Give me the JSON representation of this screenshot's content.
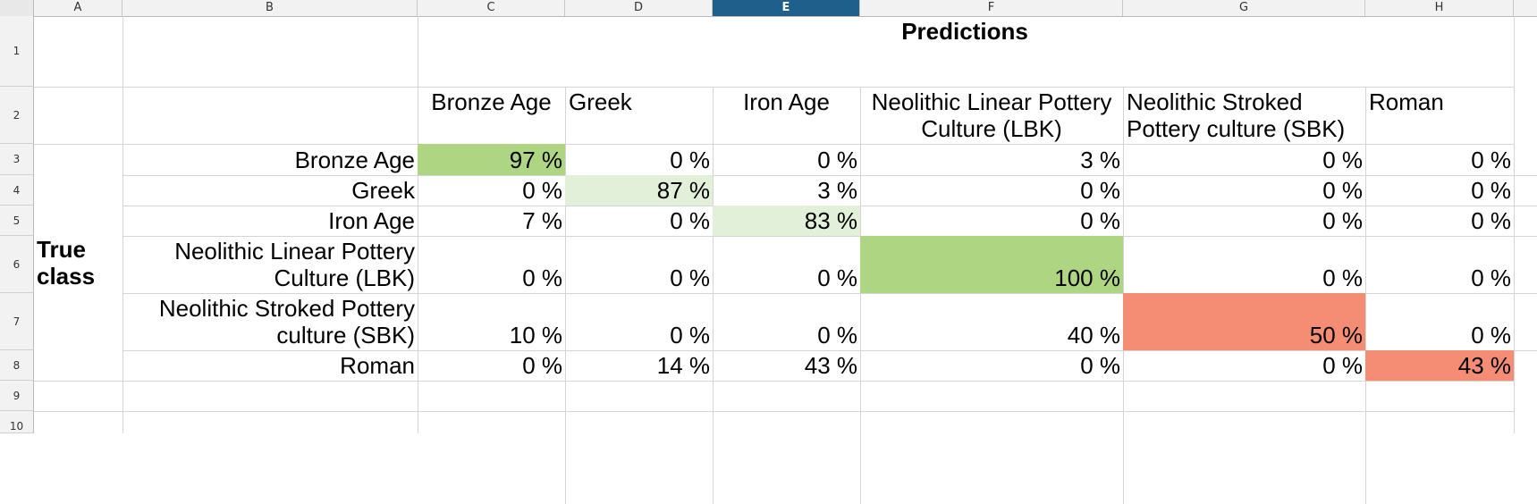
{
  "column_headers": [
    "A",
    "B",
    "C",
    "D",
    "E",
    "F",
    "G",
    "H"
  ],
  "active_column": "E",
  "row_headers": [
    "1",
    "2",
    "3",
    "4",
    "5",
    "6",
    "7",
    "8",
    "9",
    "10"
  ],
  "title": "Predictions",
  "true_class_label": "True\nclass",
  "prediction_headers": {
    "c": "Bronze Age",
    "d": "Greek",
    "e": "Iron Age",
    "f": "Neolithic Linear Pottery Culture (LBK)",
    "g": "Neolithic Stroked Pottery culture (SBK)",
    "h": "Roman"
  },
  "rows": [
    {
      "label": "Bronze Age",
      "values": [
        "97 %",
        "0 %",
        "0 %",
        "3 %",
        "0 %",
        "0 %"
      ]
    },
    {
      "label": "Greek",
      "values": [
        "0 %",
        "87 %",
        "3 %",
        "0 %",
        "0 %",
        "0 %"
      ]
    },
    {
      "label": "Iron Age",
      "values": [
        "7 %",
        "0 %",
        "83 %",
        "0 %",
        "0 %",
        "0 %"
      ]
    },
    {
      "label": "Neolithic Linear Pottery Culture (LBK)",
      "values": [
        "0 %",
        "0 %",
        "0 %",
        "100 %",
        "0 %",
        "0 %"
      ]
    },
    {
      "label": "Neolithic Stroked Pottery culture (SBK)",
      "values": [
        "10 %",
        "0 %",
        "0 %",
        "40 %",
        "50 %",
        "0 %"
      ]
    },
    {
      "label": "Roman",
      "values": [
        "0 %",
        "14 %",
        "43 %",
        "0 %",
        "0 %",
        "43 %"
      ]
    }
  ],
  "highlight_colors": {
    "strong_green": "#aed581",
    "light_green": "#e2efd9",
    "salmon": "#f58d74",
    "active_header": "#1f5f8b"
  }
}
